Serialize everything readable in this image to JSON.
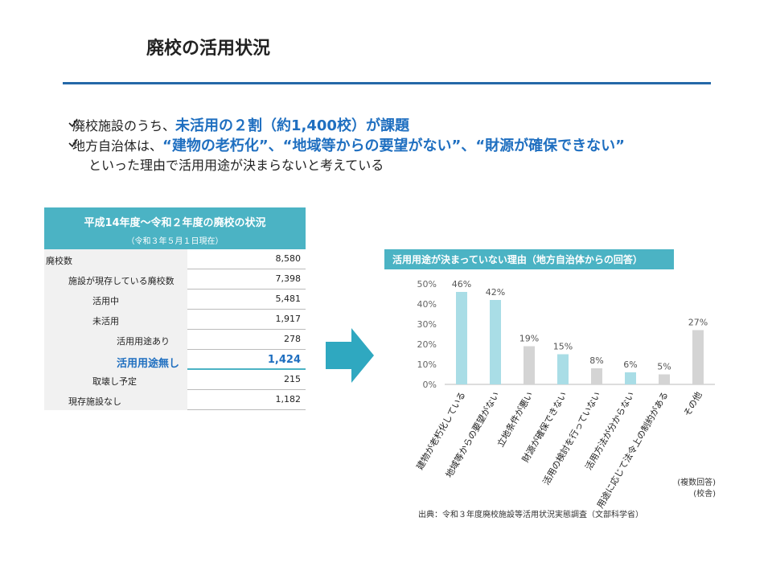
{
  "header": {
    "title": "廃校の活用状況"
  },
  "bullets": [
    {
      "text": "廃校施設のうち、",
      "highlight": "未活用の２割（約1,400校）が課題"
    },
    {
      "text": "地方自治体は、",
      "highlight": "“建物の老朽化”、“地域等からの要望がない”、“財源が確保できない”",
      "continuation": "といった理由で活用用途が決まらないと考えている"
    }
  ],
  "table": {
    "title": "平成14年度～令和２年度の廃校の状況",
    "subtitle": "（令和３年５月１日現在）",
    "rows": [
      [
        "廃校数",
        "8,580"
      ],
      [
        "施設が現存している廃校数",
        "7,398"
      ],
      [
        "活用中",
        "5,481"
      ],
      [
        "未活用",
        "1,917"
      ],
      [
        "活用用途あり",
        "278"
      ],
      [
        "活用用途無し",
        "1,424"
      ],
      [
        "取壊し予定",
        "215"
      ],
      [
        "現存施設なし",
        "1,182"
      ]
    ]
  },
  "chart_data": {
    "type": "bar",
    "title": "活用用途が決まっていない理由（地方自治体からの回答）",
    "categories": [
      "建物が老朽化している",
      "地域等からの要望がない",
      "立地条件が悪い",
      "財源が確保できない",
      "活用の検討を行っていない",
      "活用方法が分からない",
      "用途に応じて法令上の制約がある",
      "その他"
    ],
    "values": [
      46,
      42,
      19,
      15,
      8,
      6,
      5,
      27
    ],
    "value_labels": [
      "46%",
      "42%",
      "19%",
      "15%",
      "8%",
      "6%",
      "5%",
      "27%"
    ],
    "colors": [
      "#a9dde6",
      "#a9dde6",
      "#d4d4d4",
      "#a9dde6",
      "#d4d4d4",
      "#a9dde6",
      "#d4d4d4",
      "#d4d4d4"
    ],
    "ylim": [
      0,
      50
    ],
    "yticks": [
      {
        "value": 0,
        "label": "0%"
      },
      {
        "value": 10,
        "label": "10%"
      },
      {
        "value": 20,
        "label": "20%"
      },
      {
        "value": 30,
        "label": "30%"
      },
      {
        "value": 40,
        "label": "40%"
      },
      {
        "value": 50,
        "label": "50%"
      }
    ],
    "notes": [
      "(複数回答)",
      "(校舎)"
    ]
  },
  "source": "出典：令和３年度廃校施設等活用状況実態調査（文部科学省）"
}
